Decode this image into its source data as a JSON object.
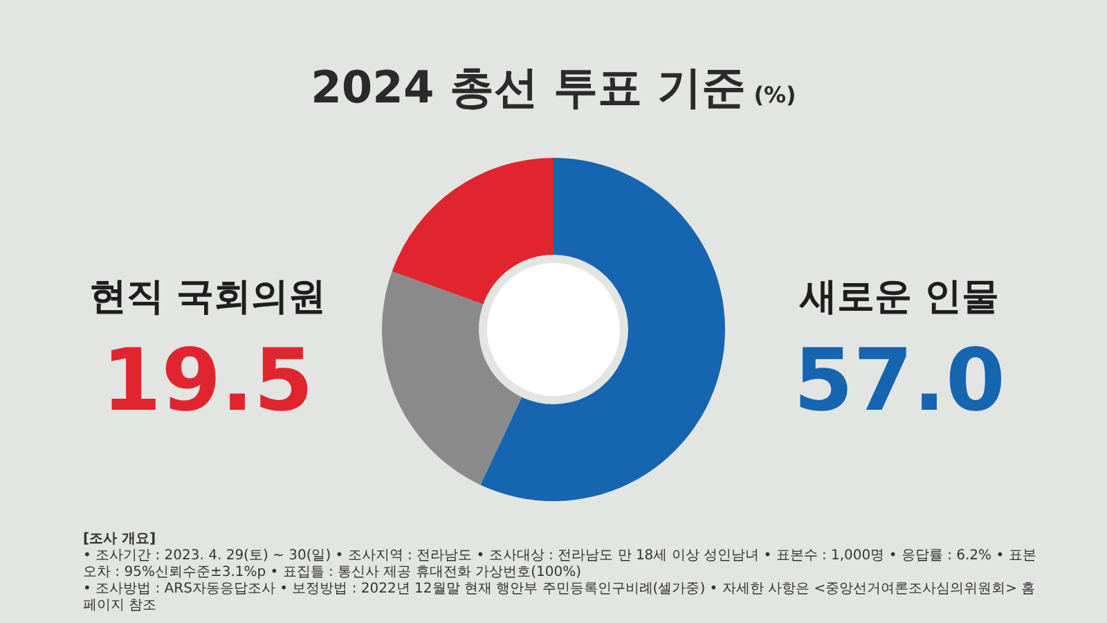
{
  "chart_data": {
    "type": "donut",
    "title": "2024 총선 투표 기준",
    "subtitle": "(%)",
    "categories": [
      "새로운 인물",
      null,
      "현직 국회의원"
    ],
    "values": [
      57.0,
      23.5,
      19.5
    ],
    "colors": [
      "#1565b0",
      "#8a8a8a",
      "#e0252f"
    ],
    "value_labels": [
      "57.0",
      null,
      "19.5"
    ],
    "annotations": [
      "[조사 개요]",
      "• 조사기간 : 2023. 4. 29(토) ~ 30(일)  • 조사지역 : 전라남도  • 조사대상 : 전라남도 만 18세 이상 성인남녀  • 표본수 : 1,000명  • 응답률 : 6.2%  • 표본오차 : 95%신뢰수준±3.1%p  • 표집틀 : 통신사 제공 휴대전화 가상번호(100%)",
      "• 조사방법 : ARS자동응답조사  • 보정방법 : 2022년 12월말 현재 행안부 주민등록인구비례(셀가중)  • 자세한 사항은 <중앙선거여론조사심의위원회> 홈페이지 참조"
    ]
  }
}
